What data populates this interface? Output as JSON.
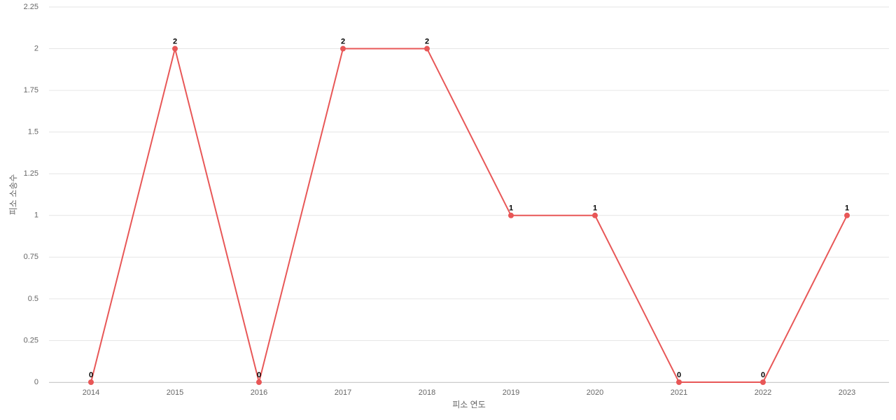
{
  "chart_data": {
    "type": "line",
    "x_label": "피소 연도",
    "y_label": "피소 소송수",
    "categories": [
      "2014",
      "2015",
      "2016",
      "2017",
      "2018",
      "2019",
      "2020",
      "2021",
      "2022",
      "2023"
    ],
    "series": [
      {
        "name": "피소 소송수",
        "color": "#e85757",
        "values": [
          0,
          2,
          0,
          2,
          2,
          1,
          1,
          0,
          0,
          1
        ]
      }
    ],
    "ylim": [
      0,
      2.25
    ],
    "yticks": [
      0,
      0.25,
      0.5,
      0.75,
      1,
      1.25,
      1.5,
      1.75,
      2,
      2.25
    ],
    "grid": true
  }
}
